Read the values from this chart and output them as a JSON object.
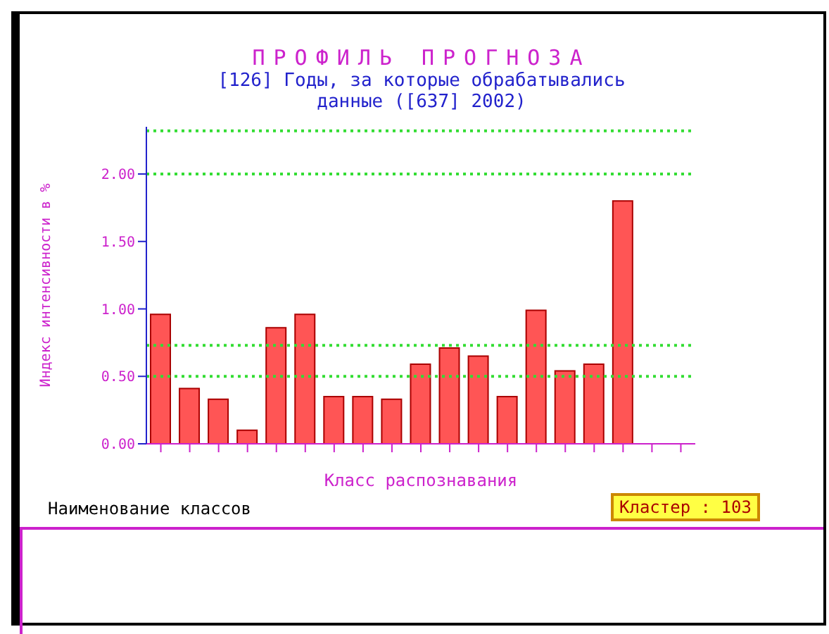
{
  "chart_data": {
    "type": "bar",
    "title": "ПРОФИЛЬ ПРОГНОЗА",
    "subtitle": "[126] Годы, за которые обрабатывались данные ([637] 2002)",
    "xlabel": "Класс распознавания",
    "ylabel": "Индекс интенсивности в %",
    "annotations": [
      "Кластер : 103",
      "Наименование классов"
    ],
    "categories": [
      null,
      null,
      null,
      null,
      null,
      null,
      null,
      null,
      null,
      null,
      null,
      null,
      null,
      null,
      null,
      null,
      null,
      null,
      null
    ],
    "values": [
      0.96,
      0.41,
      0.33,
      0.1,
      0.86,
      0.96,
      0.35,
      0.35,
      0.33,
      0.59,
      0.71,
      0.65,
      0.35,
      0.99,
      0.54,
      0.59,
      1.8,
      null,
      null
    ],
    "color": "#ff5555",
    "ylim": [
      0,
      2.35
    ],
    "yticks": [
      {
        "value": 0,
        "label": "0.00"
      },
      {
        "value": 0.5,
        "label": "0.50"
      },
      {
        "value": 1,
        "label": "1.00"
      },
      {
        "value": 1.5,
        "label": "1.50"
      },
      {
        "value": 2,
        "label": "2.00"
      }
    ],
    "ref_lines": [
      {
        "axis": "y",
        "value": 0.5,
        "color": "#33dd33",
        "line_style": "dotted"
      },
      {
        "axis": "y",
        "value": 0.73,
        "color": "#33dd33",
        "line_style": "dotted"
      },
      {
        "axis": "y",
        "value": 2,
        "color": "#33dd33",
        "line_style": "dotted"
      },
      {
        "axis": "y",
        "value": 2.32,
        "color": "#33dd33",
        "line_style": "dotted"
      }
    ],
    "grid": false,
    "legend": false
  }
}
